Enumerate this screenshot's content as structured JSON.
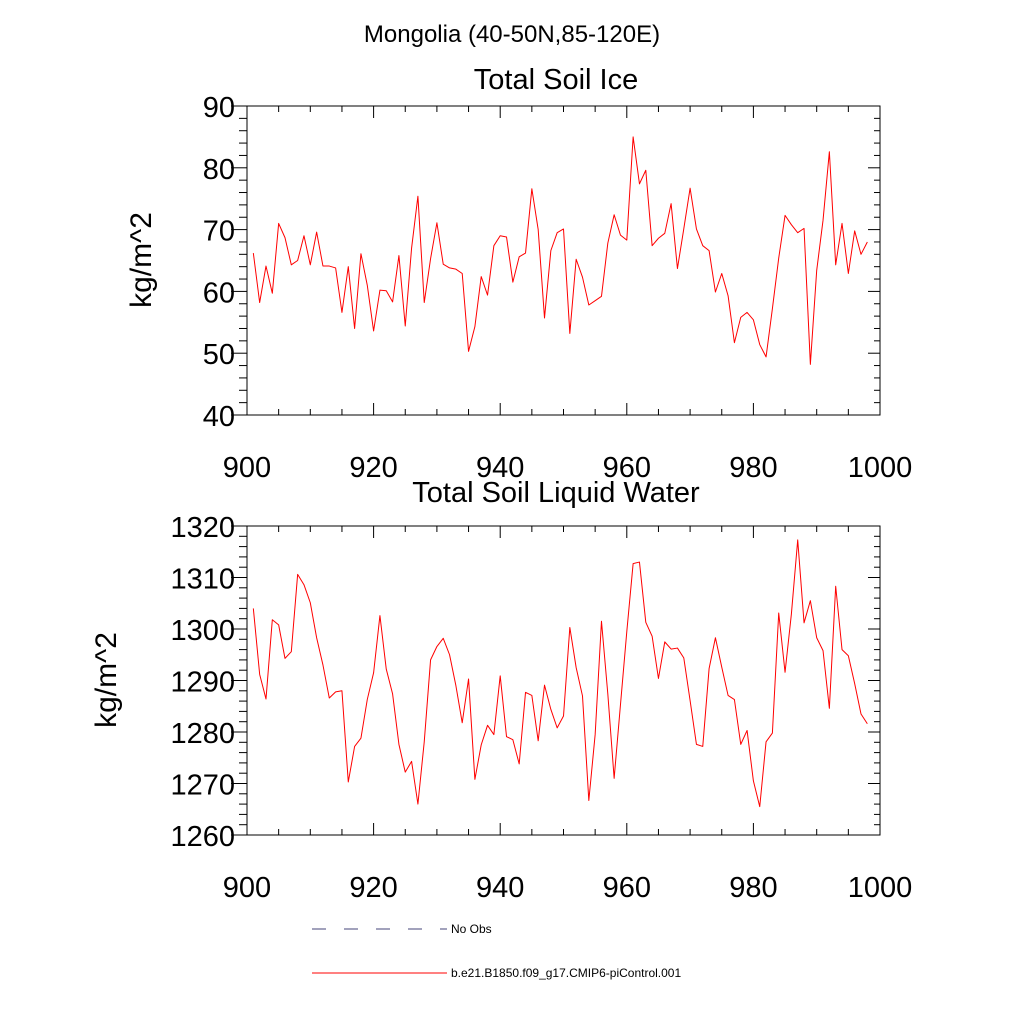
{
  "figure_title": "Mongolia (40-50N,85-120E)",
  "chart_data": [
    {
      "type": "line",
      "title": "Total Soil Ice",
      "xlabel": "",
      "ylabel": "kg/m^2",
      "xlim": [
        900,
        1000
      ],
      "ylim": [
        40,
        90
      ],
      "x_ticks": [
        900,
        920,
        940,
        960,
        980,
        1000
      ],
      "y_ticks": [
        40,
        50,
        60,
        70,
        80,
        90
      ],
      "x_tick_labels": [
        "900",
        "920",
        "940",
        "960",
        "980",
        "1000"
      ],
      "y_tick_labels": [
        "40",
        "50",
        "60",
        "70",
        "80",
        "90"
      ],
      "x_minor_step": 5,
      "y_minor_step": 2,
      "series": [
        {
          "name": "b.e21.B1850.f09_g17.CMIP6-piControl.001",
          "color": "#ff0000",
          "x_start": 901,
          "values": [
            66.2,
            58.2,
            64.1,
            59.7,
            71.0,
            68.7,
            64.3,
            65.0,
            69.0,
            64.3,
            69.6,
            64.1,
            64.1,
            63.8,
            56.6,
            64.0,
            54.0,
            66.1,
            61.0,
            53.6,
            60.2,
            60.1,
            58.3,
            65.8,
            54.4,
            67.0,
            75.4,
            58.2,
            65.3,
            71.1,
            64.4,
            63.8,
            63.6,
            62.9,
            50.3,
            54.3,
            62.4,
            59.4,
            67.4,
            69.0,
            68.8,
            61.5,
            65.6,
            66.2,
            76.6,
            70.0,
            55.7,
            66.6,
            69.5,
            70.1,
            53.2,
            65.2,
            62.3,
            57.8,
            58.5,
            59.2,
            67.8,
            72.4,
            69.1,
            68.3,
            85.0,
            77.4,
            79.6,
            67.4,
            68.6,
            69.4,
            74.2,
            63.7,
            70.1,
            76.7,
            70.1,
            67.4,
            66.6,
            59.9,
            62.9,
            59.3,
            51.7,
            55.8,
            56.6,
            55.4,
            51.4,
            49.4,
            57.2,
            65.4,
            72.3,
            70.8,
            69.5,
            70.2,
            48.2,
            63.4,
            71.5,
            82.6,
            64.3,
            71.0,
            62.9,
            69.8,
            66.0,
            68.0
          ]
        }
      ]
    },
    {
      "type": "line",
      "title": "Total Soil Liquid Water",
      "xlabel": "",
      "ylabel": "kg/m^2",
      "xlim": [
        900,
        1000
      ],
      "ylim": [
        1260,
        1320
      ],
      "x_ticks": [
        900,
        920,
        940,
        960,
        980,
        1000
      ],
      "y_ticks": [
        1260,
        1270,
        1280,
        1290,
        1300,
        1310,
        1320
      ],
      "x_tick_labels": [
        "900",
        "920",
        "940",
        "960",
        "980",
        "1000"
      ],
      "y_tick_labels": [
        "1260",
        "1270",
        "1280",
        "1290",
        "1300",
        "1310",
        "1320"
      ],
      "x_minor_step": 5,
      "y_minor_step": 2,
      "series": [
        {
          "name": "b.e21.B1850.f09_g17.CMIP6-piControl.001",
          "color": "#ff0000",
          "x_start": 901,
          "values": [
            1304.0,
            1291.2,
            1286.4,
            1301.8,
            1300.8,
            1294.3,
            1295.6,
            1310.6,
            1308.6,
            1305.1,
            1298.3,
            1293.0,
            1286.6,
            1287.8,
            1288.0,
            1270.3,
            1277.2,
            1278.8,
            1286.3,
            1291.5,
            1302.6,
            1292.2,
            1287.4,
            1277.6,
            1272.2,
            1274.3,
            1266.0,
            1278.1,
            1294.0,
            1296.6,
            1298.2,
            1295.0,
            1289.0,
            1281.8,
            1290.3,
            1270.8,
            1277.5,
            1281.3,
            1279.5,
            1290.9,
            1279.1,
            1278.5,
            1273.8,
            1287.7,
            1287.1,
            1278.3,
            1289.1,
            1284.4,
            1280.8,
            1283.1,
            1300.3,
            1292.5,
            1287.0,
            1266.7,
            1279.5,
            1301.5,
            1287.4,
            1271.0,
            1285.3,
            1299.5,
            1312.7,
            1313.0,
            1301.3,
            1298.6,
            1290.4,
            1297.5,
            1296.1,
            1296.3,
            1294.4,
            1286.1,
            1277.6,
            1277.2,
            1292.3,
            1298.3,
            1292.6,
            1287.1,
            1286.3,
            1277.6,
            1280.3,
            1270.5,
            1265.5,
            1278.1,
            1279.8,
            1303.1,
            1291.6,
            1302.9,
            1317.3,
            1301.2,
            1305.5,
            1298.3,
            1295.8,
            1284.6,
            1308.3,
            1296.0,
            1294.8,
            1289.4,
            1283.5,
            1281.6
          ]
        }
      ]
    }
  ],
  "legend": {
    "items": [
      {
        "label": "No Obs",
        "style": "dashed",
        "color": "#44447a"
      },
      {
        "label": "b.e21.B1850.f09_g17.CMIP6-piControl.001",
        "style": "solid",
        "color": "#ff0000"
      }
    ]
  }
}
